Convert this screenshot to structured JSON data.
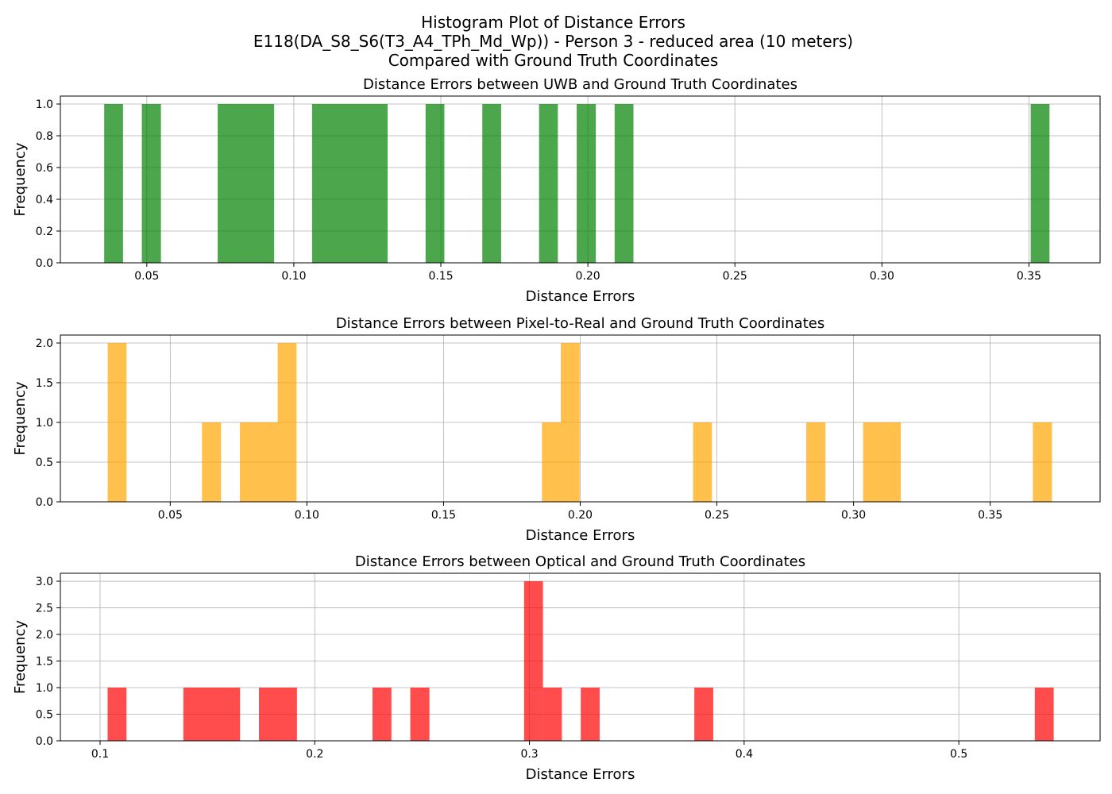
{
  "figure": {
    "title_lines": [
      "Histogram Plot of Distance Errors",
      "E118(DA_S8_S6(T3_A4_TPh_Md_Wp)) - Person 3 - reduced area (10 meters)",
      "Compared with Ground Truth Coordinates"
    ]
  },
  "chart_data": [
    {
      "type": "bar",
      "title": "Distance Errors between UWB and Ground Truth Coordinates",
      "xlabel": "Distance Errors",
      "ylabel": "Frequency",
      "xlim": [
        0.0206,
        0.3742
      ],
      "ylim": [
        0,
        1.05
      ],
      "xticks": [
        0.05,
        0.1,
        0.15,
        0.2,
        0.25,
        0.3,
        0.35
      ],
      "xtick_labels": [
        "0.05",
        "0.10",
        "0.15",
        "0.20",
        "0.25",
        "0.30",
        "0.35"
      ],
      "yticks": [
        0,
        0.2,
        0.4,
        0.6,
        0.8,
        1.0
      ],
      "ytick_labels": [
        "0.0",
        "0.2",
        "0.4",
        "0.6",
        "0.8",
        "1.0"
      ],
      "grid": true,
      "color": "#008000",
      "opacity": 0.7,
      "bin_start": 0.0355,
      "bin_width": 0.00643,
      "bins": [
        {
          "x0": 0.0355,
          "x1": 0.0419,
          "count": 1
        },
        {
          "x0": 0.0483,
          "x1": 0.0548,
          "count": 1
        },
        {
          "x0": 0.0741,
          "x1": 0.0933,
          "count": 1
        },
        {
          "x0": 0.1062,
          "x1": 0.1319,
          "count": 1
        },
        {
          "x0": 0.1448,
          "x1": 0.1512,
          "count": 1
        },
        {
          "x0": 0.1641,
          "x1": 0.1705,
          "count": 1
        },
        {
          "x0": 0.1834,
          "x1": 0.1898,
          "count": 1
        },
        {
          "x0": 0.1962,
          "x1": 0.2027,
          "count": 1
        },
        {
          "x0": 0.2091,
          "x1": 0.2155,
          "count": 1
        },
        {
          "x0": 0.3506,
          "x1": 0.357,
          "count": 1
        }
      ]
    },
    {
      "type": "bar",
      "title": "Distance Errors between Pixel-to-Real and Ground Truth Coordinates",
      "xlabel": "Distance Errors",
      "ylabel": "Frequency",
      "xlim": [
        0.0098,
        0.3902
      ],
      "ylim": [
        0,
        2.1
      ],
      "xticks": [
        0.05,
        0.1,
        0.15,
        0.2,
        0.25,
        0.3,
        0.35
      ],
      "xtick_labels": [
        "0.05",
        "0.10",
        "0.15",
        "0.20",
        "0.25",
        "0.30",
        "0.35"
      ],
      "yticks": [
        0,
        0.5,
        1.0,
        1.5,
        2.0
      ],
      "ytick_labels": [
        "0.0",
        "0.5",
        "1.0",
        "1.5",
        "2.0"
      ],
      "grid": true,
      "color": "#FFA500",
      "opacity": 0.7,
      "bins": [
        {
          "x0": 0.0271,
          "x1": 0.034,
          "count": 2
        },
        {
          "x0": 0.0616,
          "x1": 0.0686,
          "count": 1
        },
        {
          "x0": 0.0755,
          "x1": 0.0893,
          "count": 1
        },
        {
          "x0": 0.0893,
          "x1": 0.0962,
          "count": 2
        },
        {
          "x0": 0.186,
          "x1": 0.1929,
          "count": 1
        },
        {
          "x0": 0.1929,
          "x1": 0.1998,
          "count": 2
        },
        {
          "x0": 0.2413,
          "x1": 0.2482,
          "count": 1
        },
        {
          "x0": 0.2827,
          "x1": 0.2897,
          "count": 1
        },
        {
          "x0": 0.3035,
          "x1": 0.3173,
          "count": 1
        },
        {
          "x0": 0.3656,
          "x1": 0.3726,
          "count": 1
        }
      ]
    },
    {
      "type": "bar",
      "title": "Distance Errors between Optical and Ground Truth Coordinates",
      "xlabel": "Distance Errors",
      "ylabel": "Frequency",
      "xlim": [
        0.0815,
        0.5658
      ],
      "ylim": [
        0,
        3.15
      ],
      "xticks": [
        0.1,
        0.2,
        0.3,
        0.4,
        0.5
      ],
      "xtick_labels": [
        "0.1",
        "0.2",
        "0.3",
        "0.4",
        "0.5"
      ],
      "yticks": [
        0,
        0.5,
        1.0,
        1.5,
        2.0,
        2.5,
        3.0
      ],
      "ytick_labels": [
        "0.0",
        "0.5",
        "1.0",
        "1.5",
        "2.0",
        "2.5",
        "3.0"
      ],
      "grid": true,
      "color": "#FF0000",
      "opacity": 0.7,
      "bins": [
        {
          "x0": 0.1035,
          "x1": 0.1123,
          "count": 1
        },
        {
          "x0": 0.1388,
          "x1": 0.1652,
          "count": 1
        },
        {
          "x0": 0.174,
          "x1": 0.1917,
          "count": 1
        },
        {
          "x0": 0.2269,
          "x1": 0.2357,
          "count": 1
        },
        {
          "x0": 0.2445,
          "x1": 0.2534,
          "count": 1
        },
        {
          "x0": 0.2975,
          "x1": 0.3063,
          "count": 3
        },
        {
          "x0": 0.3063,
          "x1": 0.3151,
          "count": 1
        },
        {
          "x0": 0.3239,
          "x1": 0.3327,
          "count": 1
        },
        {
          "x0": 0.3768,
          "x1": 0.3856,
          "count": 1
        },
        {
          "x0": 0.5354,
          "x1": 0.5442,
          "count": 1
        }
      ]
    }
  ]
}
